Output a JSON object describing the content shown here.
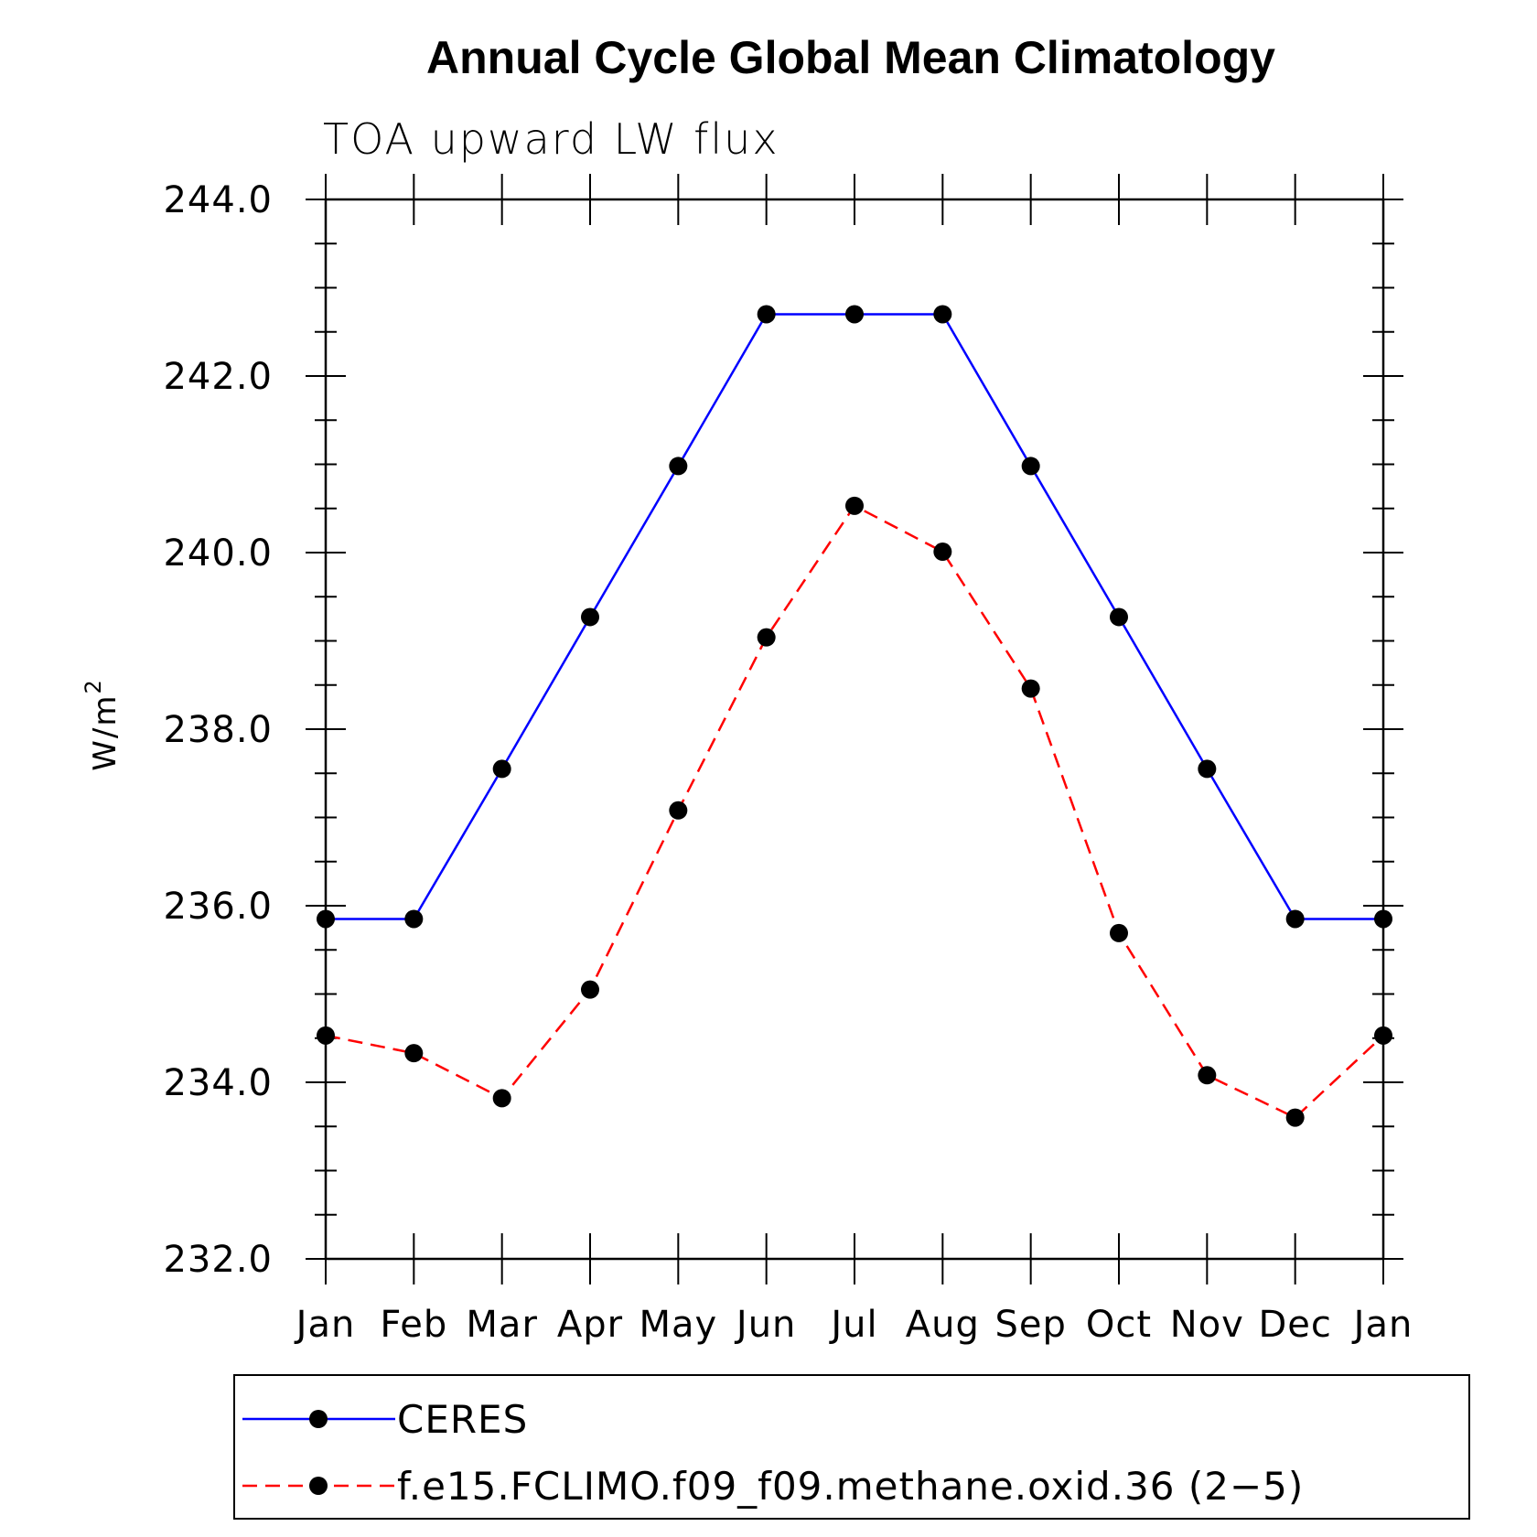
{
  "chart_data": {
    "type": "line",
    "title": "Annual Cycle Global Mean Climatology",
    "subtitle": "TOA upward LW flux",
    "ylabel": "W/m",
    "ylabel_sup": "2",
    "xlabel": "",
    "categories": [
      "Jan",
      "Feb",
      "Mar",
      "Apr",
      "May",
      "Jun",
      "Jul",
      "Aug",
      "Sep",
      "Oct",
      "Nov",
      "Dec",
      "Jan"
    ],
    "ylim": [
      232.0,
      244.0
    ],
    "yticks": [
      "232.0",
      "234.0",
      "236.0",
      "238.0",
      "240.0",
      "242.0",
      "244.0"
    ],
    "yticks_values": [
      232,
      234,
      236,
      238,
      240,
      242,
      244
    ],
    "y_minor_step": 0.5,
    "grid": false,
    "legend_position": "bottom",
    "series": [
      {
        "name": "CERES",
        "color": "#0000ff",
        "dash": "solid",
        "marker": "filled-circle",
        "values": [
          235.85,
          235.85,
          237.55,
          239.27,
          240.98,
          242.7,
          242.7,
          242.7,
          240.98,
          239.27,
          237.55,
          235.85,
          235.85
        ]
      },
      {
        "name": "f.e15.FCLIMO.f09_f09.methane.oxid.36 (2−5)",
        "color": "#ff0000",
        "dash": "dashed",
        "marker": "filled-circle",
        "values": [
          234.53,
          234.33,
          233.82,
          235.05,
          237.08,
          239.04,
          240.53,
          240.01,
          238.46,
          235.69,
          234.08,
          233.6,
          234.53
        ]
      }
    ]
  }
}
